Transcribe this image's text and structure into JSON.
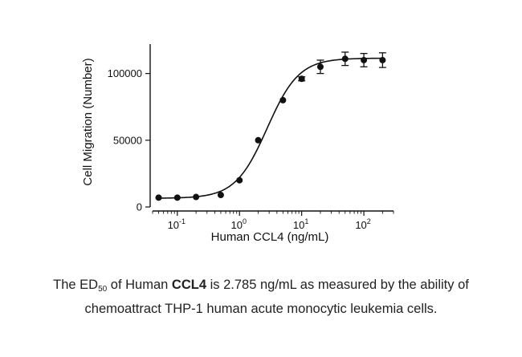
{
  "chart_data": {
    "type": "scatter",
    "title": "",
    "xlabel": "Human CCL4 (ng/mL)",
    "ylabel": "Cell Migration (Number)",
    "x_scale": "log",
    "xlim": [
      0.04,
      300
    ],
    "ylim": [
      0,
      122000
    ],
    "x_ticks": [
      {
        "value": 0.1,
        "base": "10",
        "exp": "-1"
      },
      {
        "value": 1,
        "base": "10",
        "exp": "0"
      },
      {
        "value": 10,
        "base": "10",
        "exp": "1"
      },
      {
        "value": 100,
        "base": "10",
        "exp": "2"
      }
    ],
    "y_ticks": [
      {
        "value": 0,
        "label": "0"
      },
      {
        "value": 50000,
        "label": "50000"
      },
      {
        "value": 100000,
        "label": "100000"
      }
    ],
    "series": [
      {
        "x": [
          0.05,
          0.1,
          0.2,
          0.5,
          1,
          2,
          5,
          10,
          20,
          50,
          100,
          200
        ],
        "y": [
          7000,
          7000,
          7500,
          9000,
          20000,
          50000,
          80000,
          96000,
          105000,
          111000,
          110000,
          110000
        ],
        "error": [
          0,
          0,
          0,
          0,
          0,
          0,
          0,
          1500,
          5000,
          5000,
          5000,
          5500
        ]
      }
    ],
    "fit_curve": {
      "model": "4PL",
      "bottom": 6500,
      "top": 111500,
      "ec50": 2.785,
      "hill": 1.7
    },
    "grid": false,
    "legend": "none"
  },
  "caption": {
    "part1": "The ED",
    "subscript": "50",
    "part2": " of Human ",
    "bold": "CCL4",
    "part3": " is 2.785 ng/mL as measured by the ability of",
    "line2": "chemoattract THP-1 human acute monocytic leukemia cells."
  }
}
